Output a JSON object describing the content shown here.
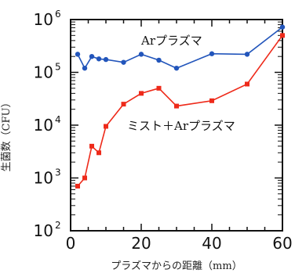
{
  "chart_data": {
    "type": "line",
    "xlabel": "プラズマからの距離（mm）",
    "ylabel": "生菌数（CFU）",
    "xlim": [
      0,
      60
    ],
    "ylim_log10": [
      2,
      6
    ],
    "y_scale": "log",
    "x_ticks": [
      0,
      20,
      40,
      60
    ],
    "y_ticks": [
      {
        "exp": 2,
        "base": "10",
        "sup": "2"
      },
      {
        "exp": 3,
        "base": "10",
        "sup": "3"
      },
      {
        "exp": 4,
        "base": "10",
        "sup": "4"
      },
      {
        "exp": 5,
        "base": "10",
        "sup": "5"
      },
      {
        "exp": 6,
        "base": "10",
        "sup": "6"
      }
    ],
    "x": [
      2,
      4,
      6,
      8,
      10,
      15,
      20,
      25,
      30,
      40,
      50,
      60
    ],
    "series": [
      {
        "name": "Arプラズマ",
        "color": "#2255bb",
        "values": [
          220000,
          120000,
          200000,
          180000,
          175000,
          155000,
          220000,
          170000,
          120000,
          225000,
          220000,
          720000
        ]
      },
      {
        "name": "ミスト＋Arプラズマ",
        "color": "#ee2a1a",
        "values": [
          700,
          1000,
          4000,
          3000,
          9500,
          25000,
          40000,
          50000,
          23000,
          29000,
          60000,
          500000
        ]
      }
    ]
  }
}
